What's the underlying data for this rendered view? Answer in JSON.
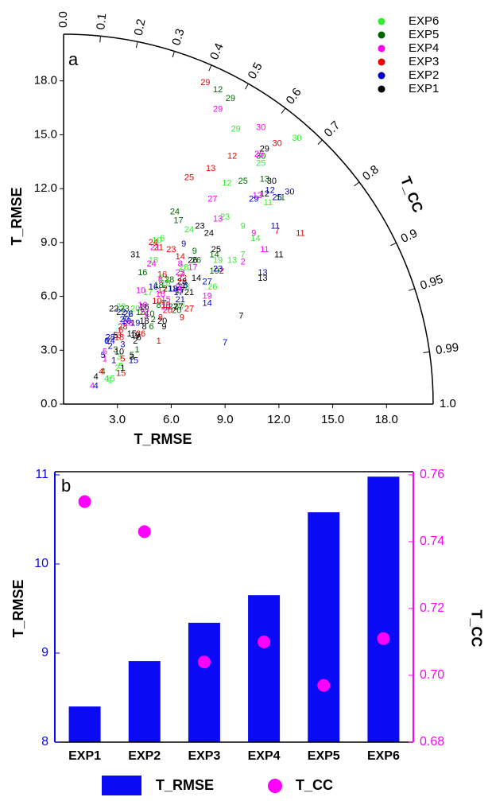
{
  "chart_data": [
    {
      "type": "taylor",
      "panel_label": "a",
      "xlabel": "T_RMSE",
      "ylabel": "T_RMSE",
      "arc_label": "T_CC",
      "xlim": [
        0,
        20.6
      ],
      "ylim": [
        0,
        20.6
      ],
      "xticks": [
        {
          "value": 3,
          "label": "3.0"
        },
        {
          "value": 6,
          "label": "6.0"
        },
        {
          "value": 9,
          "label": "9.0"
        },
        {
          "value": 12,
          "label": "12.0"
        },
        {
          "value": 15,
          "label": "15.0"
        },
        {
          "value": 18,
          "label": "18.0"
        }
      ],
      "yticks": [
        {
          "value": 0,
          "label": "0.0"
        },
        {
          "value": 3,
          "label": "3.0"
        },
        {
          "value": 6,
          "label": "6.0"
        },
        {
          "value": 9,
          "label": "9.0"
        },
        {
          "value": 12,
          "label": "12.0"
        },
        {
          "value": 15,
          "label": "15.0"
        },
        {
          "value": 18,
          "label": "18.0"
        }
      ],
      "cc_ticks": [
        {
          "value": 0,
          "label": "0.0"
        },
        0.1,
        0.2,
        0.3,
        0.4,
        0.5,
        0.6,
        0.7,
        0.8,
        0.9,
        0.95,
        0.99,
        {
          "value": 1,
          "label": "1.0"
        }
      ],
      "series": [
        {
          "name": "EXP6",
          "color": "#33ee33",
          "x": [
            2.6,
            3.0,
            3.1,
            2.4,
            3.2,
            5.5,
            10.0,
            6.9,
            10.0,
            5.2,
            11.4,
            9.1,
            9.4,
            10.7,
            2.6,
            5.7,
            4.7,
            5.0,
            8.6,
            4.0,
            5.6,
            3.2,
            9.0,
            7.0,
            11.0,
            8.3,
            6.5,
            6.7,
            9.6,
            13.0
          ],
          "y": [
            1.3,
            2.0,
            2.6,
            1.4,
            2.1,
            9.2,
            8.3,
            6.5,
            9.9,
            9.1,
            11.2,
            12.3,
            8.0,
            9.2,
            1.4,
            6.7,
            6.2,
            8.0,
            8.0,
            5.3,
            7.0,
            5.4,
            10.4,
            9.7,
            13.4,
            6.5,
            5.4,
            7.6,
            15.3,
            14.8
          ],
          "labels": [
            "1",
            "2",
            "3",
            "4",
            "5",
            "6",
            "7",
            "8",
            "9",
            "10",
            "11",
            "12",
            "13",
            "14",
            "15",
            "16",
            "17",
            "18",
            "19",
            "20",
            "21",
            "22",
            "23",
            "24",
            "25",
            "26",
            "27",
            "28",
            "29",
            "30"
          ]
        },
        {
          "name": "EXP5",
          "color": "#006600",
          "x": [
            4.1,
            5.0,
            2.9,
            2.2,
            3.8,
            4.9,
            5.6,
            5.3,
            7.3,
            4.8,
            12.1,
            8.6,
            11.2,
            8.4,
            4.3,
            4.4,
            6.4,
            5.3,
            8.4,
            6.3,
            5.8,
            3.6,
            3.4,
            6.2,
            10.0,
            7.4,
            6.1,
            5.9,
            9.3,
            11.0
          ],
          "y": [
            3.0,
            4.7,
            3.0,
            1.8,
            2.7,
            4.3,
            5.6,
            5.5,
            8.5,
            5.0,
            11.5,
            17.5,
            12.5,
            8.3,
            5.1,
            7.3,
            10.2,
            6.6,
            7.4,
            5.2,
            6.4,
            5.0,
            5.3,
            10.7,
            12.4,
            8.0,
            5.4,
            6.9,
            17.0,
            13.8
          ],
          "labels": [
            "1",
            "2",
            "3",
            "4",
            "5",
            "6",
            "7",
            "8",
            "9",
            "10",
            "11",
            "12",
            "13",
            "14",
            "15",
            "16",
            "17",
            "18",
            "19",
            "20",
            "21",
            "22",
            "23",
            "24",
            "25",
            "26",
            "27",
            "28",
            "29",
            "30"
          ]
        },
        {
          "name": "EXP4",
          "color": "#ff00ff",
          "x": [
            2.3,
            10.0,
            4.6,
            1.6,
            2.3,
            5.4,
            6.6,
            6.5,
            10.6,
            4.3,
            11.2,
            10.8,
            8.6,
            6.3,
            5.7,
            4.4,
            7.2,
            5.4,
            8.0,
            5.7,
            5.1,
            4.5,
            6.5,
            4.9,
            10.9,
            6.5,
            8.3,
            3.6,
            8.6,
            11.0
          ],
          "y": [
            2.5,
            7.9,
            4.9,
            1.0,
            2.9,
            6.9,
            7.2,
            7.8,
            9.5,
            6.3,
            8.6,
            11.6,
            10.3,
            6.4,
            5.8,
            5.5,
            7.6,
            6.1,
            6.0,
            5.4,
            8.7,
            5.1,
            7.3,
            7.8,
            13.9,
            6.5,
            11.4,
            4.5,
            16.4,
            15.4
          ],
          "labels": [
            "1",
            "2",
            "3",
            "4",
            "5",
            "6",
            "7",
            "8",
            "9",
            "10",
            "11",
            "12",
            "13",
            "14",
            "15",
            "16",
            "17",
            "18",
            "19",
            "20",
            "21",
            "22",
            "23",
            "24",
            "25",
            "26",
            "27",
            "28",
            "29",
            "30"
          ]
        },
        {
          "name": "EXP3",
          "color": "#ee0000",
          "x": [
            5.3,
            8.8,
            3.1,
            2.1,
            3.3,
            3.2,
            11.9,
            5.4,
            6.6,
            5.2,
            13.2,
            9.4,
            8.2,
            6.5,
            3.2,
            5.5,
            5.5,
            3.1,
            5.7,
            5.8,
            5.3,
            6.6,
            6.0,
            5.0,
            7.0,
            4.3,
            7.0,
            3.3,
            7.9,
            11.9
          ],
          "y": [
            3.5,
            7.4,
            3.8,
            1.8,
            2.5,
            4.1,
            9.6,
            4.8,
            4.8,
            5.7,
            9.5,
            13.8,
            13.1,
            8.2,
            1.7,
            7.2,
            6.3,
            3.7,
            5.5,
            5.2,
            8.7,
            7.0,
            8.6,
            9.0,
            12.6,
            3.9,
            5.3,
            4.3,
            17.9,
            14.5
          ],
          "labels": [
            "1",
            "2",
            "3",
            "4",
            "5",
            "6",
            "7",
            "8",
            "9",
            "10",
            "11",
            "12",
            "13",
            "14",
            "15",
            "16",
            "17",
            "18",
            "19",
            "20",
            "21",
            "22",
            "23",
            "24",
            "25",
            "26",
            "27",
            "28",
            "29",
            "30"
          ]
        },
        {
          "name": "EXP2",
          "color": "#0000cc",
          "x": [
            2.8,
            2.6,
            3.3,
            1.8,
            2.2,
            2.4,
            9.0,
            6.8,
            6.7,
            3.5,
            11.8,
            11.5,
            11.1,
            8.0,
            3.9,
            5.0,
            6.4,
            6.1,
            4.0,
            3.4,
            6.5,
            3.2,
            8.6,
            2.6,
            11.9,
            3.6,
            8.0,
            2.6,
            10.6,
            12.6
          ],
          "y": [
            2.4,
            3.2,
            3.3,
            1.0,
            2.7,
            3.5,
            3.4,
            6.6,
            8.9,
            4.6,
            9.9,
            11.9,
            7.3,
            5.6,
            2.4,
            6.5,
            6.2,
            6.4,
            4.5,
            4.7,
            5.8,
            5.1,
            7.5,
            3.5,
            11.5,
            5.0,
            6.8,
            3.7,
            11.4,
            11.8
          ],
          "labels": [
            "1",
            "2",
            "3",
            "4",
            "5",
            "6",
            "7",
            "8",
            "9",
            "10",
            "11",
            "12",
            "13",
            "14",
            "15",
            "16",
            "17",
            "18",
            "19",
            "20",
            "21",
            "22",
            "23",
            "24",
            "25",
            "26",
            "27",
            "28",
            "29",
            "30"
          ]
        },
        {
          "name": "EXP1",
          "color": "#000000",
          "x": [
            3.3,
            4.0,
            3.8,
            1.8,
            2.9,
            4.2,
            9.9,
            4.5,
            5.6,
            3.1,
            12.0,
            11.2,
            11.1,
            7.4,
            3.8,
            4.5,
            6.5,
            4.5,
            4.0,
            5.5,
            7.0,
            2.8,
            7.6,
            8.1,
            8.5,
            7.2,
            6.4,
            6.6,
            11.2,
            11.6,
            4.0
          ],
          "y": [
            2.0,
            3.5,
            2.6,
            1.5,
            3.8,
            3.7,
            4.9,
            4.3,
            4.3,
            2.9,
            8.3,
            11.7,
            7.0,
            7.0,
            3.9,
            5.4,
            6.3,
            4.6,
            3.8,
            4.6,
            6.2,
            5.3,
            9.9,
            9.5,
            8.6,
            8.0,
            5.4,
            6.8,
            14.2,
            12.4,
            8.3
          ],
          "labels": [
            "1",
            "2",
            "3",
            "4",
            "5",
            "6",
            "7",
            "8",
            "9",
            "10",
            "11",
            "12",
            "13",
            "14",
            "15",
            "16",
            "17",
            "18",
            "19",
            "20",
            "21",
            "22",
            "23",
            "24",
            "25",
            "26",
            "27",
            "28",
            "29",
            "30",
            "31"
          ]
        }
      ]
    },
    {
      "type": "bar",
      "panel_label": "b",
      "ylabel": "T_RMSE",
      "y2label": "T_CC",
      "categories": [
        "EXP1",
        "EXP2",
        "EXP3",
        "EXP4",
        "EXP5",
        "EXP6"
      ],
      "ylim": [
        8,
        11
      ],
      "yticks": [
        8,
        9,
        10,
        11
      ],
      "y2lim": [
        0.68,
        0.76
      ],
      "y2ticks": [
        0.68,
        {
          "value": 0.7,
          "label": "0.70"
        },
        0.72,
        0.74,
        0.76
      ],
      "series": [
        {
          "name": "T_RMSE",
          "type": "bar",
          "color": "#0a0af5",
          "values": [
            8.4,
            8.91,
            9.34,
            9.65,
            10.58,
            10.98
          ]
        },
        {
          "name": "T_CC",
          "type": "scatter",
          "axis": "y2",
          "color": "#ff00ff",
          "values": [
            0.752,
            0.743,
            0.704,
            0.71,
            0.697,
            0.711
          ]
        }
      ]
    }
  ]
}
